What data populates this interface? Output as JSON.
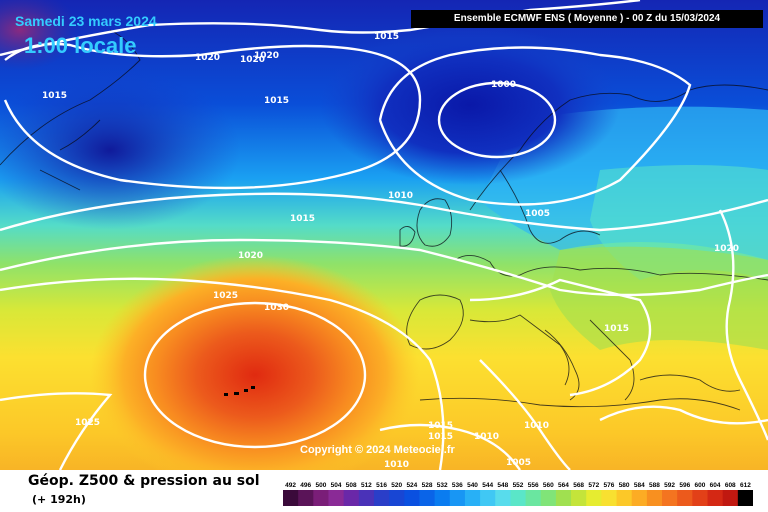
{
  "header": {
    "date": "Samedi 23 mars 2024",
    "time": "1:00 locale",
    "model": "Ensemble ECMWF ENS  ( Moyenne )  -  00 Z du 15/03/2024"
  },
  "footer": {
    "title": "Géop. Z500 & pression au sol",
    "subtitle": "(+ 192h)",
    "copyright": "Copyright © 2024 Meteociel.fr"
  },
  "legend": {
    "values": [
      "492",
      "496",
      "500",
      "504",
      "508",
      "512",
      "516",
      "520",
      "524",
      "528",
      "532",
      "536",
      "540",
      "544",
      "548",
      "552",
      "556",
      "560",
      "564",
      "568",
      "572",
      "576",
      "580",
      "584",
      "588",
      "592",
      "596",
      "600",
      "604",
      "608",
      "612"
    ],
    "colors": [
      "#3a0a3a",
      "#5a1458",
      "#7a1e78",
      "#8a2a96",
      "#6a28a8",
      "#4a32b8",
      "#2a3ec8",
      "#1846d4",
      "#0a50e0",
      "#0a64e8",
      "#0a7cf0",
      "#1896f4",
      "#28b0f6",
      "#40c8f4",
      "#58dcec",
      "#5ae6c8",
      "#6ae6a0",
      "#80e478",
      "#a0e050",
      "#c4e43a",
      "#e6ec30",
      "#f8e030",
      "#fcc828",
      "#fcac24",
      "#f89020",
      "#f47420",
      "#ec5a1c",
      "#e24018",
      "#d42814",
      "#c01810",
      "#000000"
    ]
  },
  "isobar_labels": [
    {
      "text": "1015"
    },
    {
      "text": "1020"
    },
    {
      "text": "1020"
    },
    {
      "text": "1020"
    },
    {
      "text": "1015"
    },
    {
      "text": "1015"
    },
    {
      "text": "1000"
    },
    {
      "text": "1010"
    },
    {
      "text": "1005"
    },
    {
      "text": "1015"
    },
    {
      "text": "1020"
    },
    {
      "text": "1020"
    },
    {
      "text": "1025"
    },
    {
      "text": "1030"
    },
    {
      "text": "1015"
    },
    {
      "text": "1025"
    },
    {
      "text": "1015"
    },
    {
      "text": "1015"
    },
    {
      "text": "1010"
    },
    {
      "text": "1010"
    },
    {
      "text": "1010"
    },
    {
      "text": "1005"
    }
  ],
  "colors": {
    "header_text": "#33ccff",
    "isobar": "#ffffff",
    "high_core": "#e02a10",
    "low_core": "#0a18a8"
  }
}
